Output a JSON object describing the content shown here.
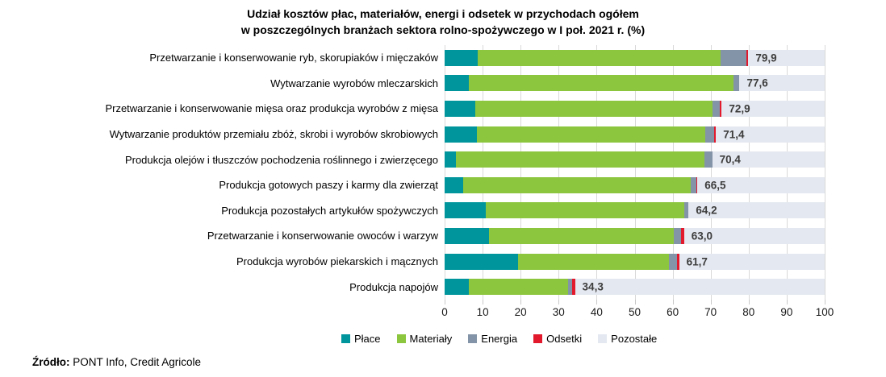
{
  "title": {
    "line1": "Udział kosztów płac, materiałów, energi i odsetek w przychodach ogółem",
    "line2": "w poszczególnych branżach sektora rolno-spożywczego w I poł. 2021 r. (%)"
  },
  "source": {
    "label": "Źródło:",
    "text": " PONT Info, Credit Agricole"
  },
  "chart_data": {
    "type": "bar",
    "orientation": "horizontal",
    "stacked": true,
    "grid": true,
    "xlim": [
      0,
      100
    ],
    "xticks": [
      0,
      10,
      20,
      30,
      40,
      50,
      60,
      70,
      80,
      90,
      100
    ],
    "categories": [
      "Przetwarzanie i konserwowanie ryb, skorupiaków i mięczaków",
      "Wytwarzanie wyrobów mleczarskich",
      "Przetwarzanie i konserwowanie mięsa oraz produkcja wyrobów z mięsa",
      "Wytwarzanie produktów przemiału zbóż, skrobi i wyrobów skrobiowych",
      "Produkcja olejów i tłuszczów pochodzenia roślinnego i zwierzęcego",
      "Produkcja gotowych paszy i karmy dla zwierząt",
      "Produkcja pozostałych artykułów spożywczych",
      "Przetwarzanie i konserwowanie owoców i warzyw",
      "Produkcja wyrobów piekarskich i mącznych",
      "Produkcja napojów"
    ],
    "series": [
      {
        "name": "Płace",
        "color": "#00959c",
        "values": [
          8.7,
          6.3,
          8.1,
          8.5,
          3.0,
          4.9,
          10.9,
          11.6,
          19.4,
          6.3
        ]
      },
      {
        "name": "Materiały",
        "color": "#8cc63e",
        "values": [
          63.9,
          69.8,
          62.4,
          60.0,
          65.4,
          59.9,
          52.1,
          48.6,
          39.7,
          26.1
        ]
      },
      {
        "name": "Energia",
        "color": "#8494a8",
        "values": [
          6.8,
          1.5,
          1.9,
          2.4,
          2.0,
          1.4,
          1.2,
          2.1,
          2.0,
          1.2
        ]
      },
      {
        "name": "Odsetki",
        "color": "#e2182c",
        "values": [
          0.5,
          0.0,
          0.5,
          0.5,
          0.0,
          0.3,
          0.0,
          0.7,
          0.6,
          0.7
        ]
      },
      {
        "name": "Pozostałe",
        "color": "#e4e8f0",
        "fill_to": 100
      }
    ],
    "totals": [
      79.9,
      77.6,
      72.9,
      71.4,
      70.4,
      66.5,
      64.2,
      63.0,
      61.7,
      34.3
    ],
    "total_labels": [
      "79,9",
      "77,6",
      "72,9",
      "71,4",
      "70,4",
      "66,5",
      "64,2",
      "63,0",
      "61,7",
      "34,3"
    ],
    "legend_position": "bottom",
    "legend": [
      {
        "label": "Płace",
        "color": "#00959c"
      },
      {
        "label": "Materiały",
        "color": "#8cc63e"
      },
      {
        "label": "Energia",
        "color": "#8494a8"
      },
      {
        "label": "Odsetki",
        "color": "#e2182c"
      },
      {
        "label": "Pozostałe",
        "color": "#e4e8f0"
      }
    ]
  }
}
